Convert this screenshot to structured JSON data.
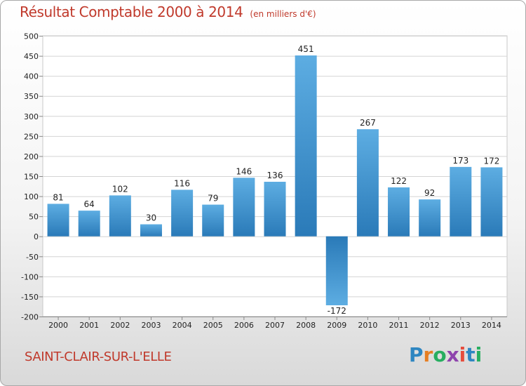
{
  "title": "Résultat Comptable 2000 à 2014",
  "unit": "(en milliers d'€)",
  "commune": "SAINT-CLAIR-SUR-L'ELLE",
  "logo": {
    "letters": [
      "P",
      "r",
      "o",
      "x",
      "i",
      "t",
      "i"
    ],
    "colors": [
      "#2e86c1",
      "#e67e22",
      "#27ae60",
      "#8e44ad",
      "#e74c3c",
      "#2e86c1",
      "#27ae60"
    ]
  },
  "colors": {
    "bar_top": "#5dade2",
    "bar_bottom": "#2a7ab8",
    "grid": "#d4d4d4",
    "title": "#c0392b"
  },
  "chart_data": {
    "type": "bar",
    "title": "Résultat Comptable 2000 à 2014",
    "ylabel": "en milliers d'€",
    "xlabel": "",
    "categories": [
      "2000",
      "2001",
      "2002",
      "2003",
      "2004",
      "2005",
      "2006",
      "2007",
      "2008",
      "2009",
      "2010",
      "2011",
      "2012",
      "2013",
      "2014"
    ],
    "values": [
      81,
      64,
      102,
      30,
      116,
      79,
      146,
      136,
      451,
      -172,
      267,
      122,
      92,
      173,
      172
    ],
    "labels": [
      "81",
      "64",
      "102",
      "30",
      "116",
      "79",
      "146",
      "136",
      "451",
      "-172",
      "267",
      "122",
      "92",
      "173",
      "172"
    ],
    "ylim": [
      -200,
      500
    ],
    "yticks": [
      -200,
      -150,
      -100,
      -50,
      0,
      50,
      100,
      150,
      200,
      250,
      300,
      350,
      400,
      450,
      500
    ],
    "grid": true
  }
}
